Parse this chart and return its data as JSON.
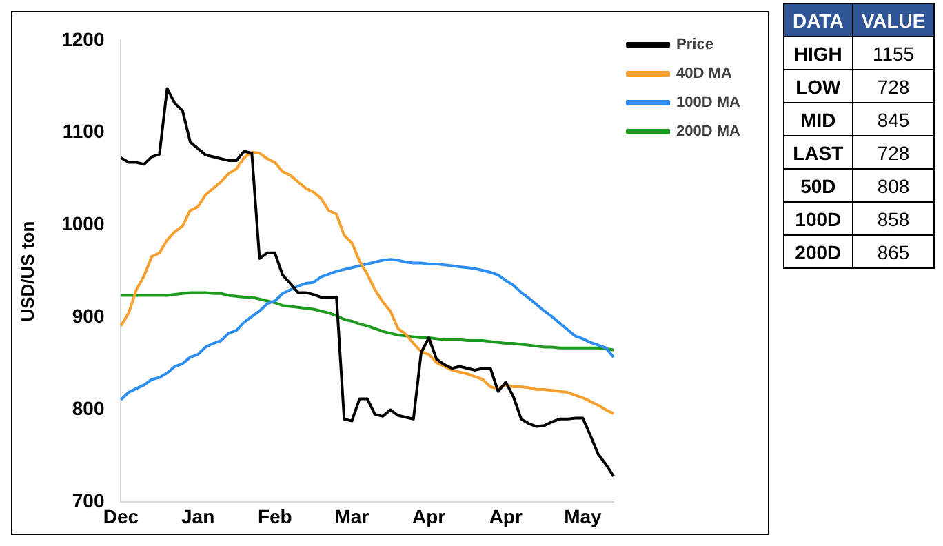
{
  "chart_data": {
    "type": "line",
    "ylabel": "USD/US ton",
    "ylim": [
      700,
      1200
    ],
    "yticks": [
      700,
      800,
      900,
      1000,
      1100,
      1200
    ],
    "grid": false,
    "legend": "top right",
    "marker": "none",
    "line_style": "solid",
    "categories": [
      "Dec",
      null,
      null,
      null,
      null,
      null,
      null,
      null,
      null,
      null,
      "Jan",
      null,
      null,
      null,
      null,
      null,
      null,
      null,
      null,
      null,
      "Feb",
      null,
      null,
      null,
      null,
      null,
      null,
      null,
      null,
      null,
      "Mar",
      null,
      null,
      null,
      null,
      null,
      null,
      null,
      null,
      null,
      "Apr",
      null,
      null,
      null,
      null,
      null,
      null,
      null,
      null,
      null,
      "Apr",
      null,
      null,
      null,
      null,
      null,
      null,
      null,
      null,
      null,
      "May",
      null,
      null,
      null,
      null
    ],
    "series": [
      {
        "name": "Price",
        "color": "#000000",
        "values": [
          1073,
          1068,
          1068,
          1066,
          1074,
          1077,
          1148,
          1132,
          1124,
          1090,
          1083,
          1076,
          1074,
          1072,
          1070,
          1070,
          1080,
          1078,
          964,
          970,
          970,
          946,
          937,
          927,
          927,
          925,
          922,
          922,
          922,
          790,
          788,
          812,
          812,
          795,
          793,
          800,
          794,
          792,
          790,
          862,
          878,
          855,
          849,
          845,
          847,
          845,
          843,
          845,
          845,
          820,
          830,
          814,
          790,
          785,
          782,
          783,
          787,
          790,
          790,
          791,
          791,
          772,
          752,
          741,
          728
        ]
      },
      {
        "name": "40D MA",
        "color": "#f7a030",
        "values": [
          891,
          905,
          930,
          945,
          966,
          970,
          984,
          993,
          999,
          1016,
          1020,
          1033,
          1040,
          1047,
          1056,
          1061,
          1073,
          1079,
          1078,
          1072,
          1068,
          1058,
          1054,
          1047,
          1040,
          1036,
          1029,
          1016,
          1012,
          989,
          981,
          961,
          947,
          930,
          917,
          907,
          888,
          882,
          872,
          863,
          860,
          851,
          847,
          843,
          841,
          839,
          836,
          833,
          825,
          823,
          827,
          825,
          825,
          824,
          822,
          822,
          821,
          820,
          819,
          816,
          813,
          809,
          805,
          800,
          796
        ]
      },
      {
        "name": "100D MA",
        "color": "#2b8ef0",
        "values": [
          811,
          819,
          823,
          827,
          833,
          835,
          840,
          847,
          850,
          857,
          860,
          868,
          872,
          875,
          883,
          886,
          895,
          901,
          907,
          915,
          918,
          926,
          930,
          934,
          937,
          938,
          944,
          947,
          950,
          952,
          954,
          956,
          958,
          960,
          962,
          963,
          962,
          960,
          959,
          959,
          958,
          958,
          957,
          956,
          955,
          954,
          953,
          951,
          949,
          946,
          940,
          935,
          927,
          921,
          914,
          907,
          901,
          894,
          887,
          880,
          877,
          873,
          870,
          867,
          857
        ]
      },
      {
        "name": "200D MA",
        "color": "#1e9a1e",
        "values": [
          924,
          924,
          924,
          924,
          924,
          924,
          924,
          925,
          926,
          927,
          927,
          927,
          926,
          926,
          924,
          923,
          922,
          922,
          920,
          918,
          916,
          913,
          912,
          911,
          910,
          909,
          907,
          905,
          902,
          898,
          896,
          893,
          891,
          888,
          885,
          883,
          881,
          880,
          879,
          878,
          878,
          877,
          876,
          876,
          876,
          875,
          875,
          875,
          874,
          873,
          872,
          872,
          871,
          870,
          869,
          868,
          868,
          867,
          867,
          867,
          867,
          867,
          867,
          866,
          865
        ]
      }
    ],
    "annotations": [
      "DATA",
      "VALUE",
      "HIGH",
      "1155",
      "LOW",
      "728",
      "MID",
      "845",
      "LAST",
      "728",
      "50D",
      "808",
      "100D",
      "858",
      "200D",
      "865"
    ]
  }
}
